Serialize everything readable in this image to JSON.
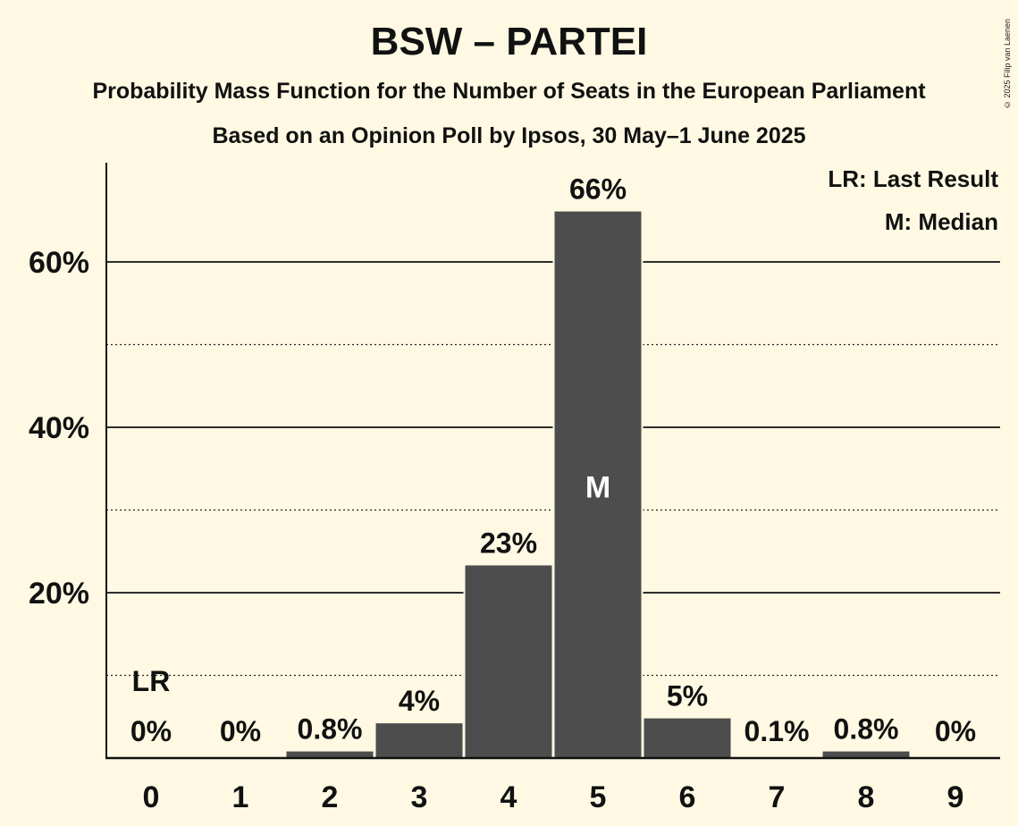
{
  "chart_data": {
    "type": "bar",
    "title": "BSW – PARTEI",
    "subtitle": "Probability Mass Function for the Number of Seats in the European Parliament",
    "subtitle2": "Based on an Opinion Poll by Ipsos, 30 May–1 June 2025",
    "categories": [
      "0",
      "1",
      "2",
      "3",
      "4",
      "5",
      "6",
      "7",
      "8",
      "9"
    ],
    "values": [
      0,
      0,
      0.8,
      4.2,
      23.3,
      66.1,
      4.8,
      0.1,
      0.8,
      0
    ],
    "data_labels": [
      "0%",
      "0%",
      "0.8%",
      "4%",
      "23%",
      "66%",
      "5%",
      "0.1%",
      "0.8%",
      "0%"
    ],
    "ylim": [
      0,
      72
    ],
    "yticks": [
      20,
      40,
      60
    ],
    "ytick_labels": [
      "20%",
      "40%",
      "60%"
    ],
    "minor_gridlines": [
      10,
      30,
      50
    ],
    "bar_color": "#4d4d4d",
    "background_color": "#fff9e3",
    "last_result": {
      "index": 0,
      "label": "LR"
    },
    "median": {
      "index": 5,
      "label": "M"
    },
    "legend": {
      "placement": "top-right",
      "items": [
        "LR: Last Result",
        "M: Median"
      ]
    },
    "copyright": "© 2025 Filip van Laenen"
  }
}
